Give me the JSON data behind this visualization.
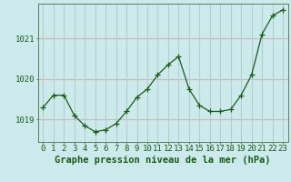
{
  "x": [
    0,
    1,
    2,
    3,
    4,
    5,
    6,
    7,
    8,
    9,
    10,
    11,
    12,
    13,
    14,
    15,
    16,
    17,
    18,
    19,
    20,
    21,
    22,
    23
  ],
  "y": [
    1019.3,
    1019.6,
    1019.6,
    1019.1,
    1018.85,
    1018.7,
    1018.75,
    1018.9,
    1019.2,
    1019.55,
    1019.75,
    1020.1,
    1020.35,
    1020.55,
    1019.75,
    1019.35,
    1019.2,
    1019.2,
    1019.25,
    1019.6,
    1020.1,
    1021.1,
    1021.55,
    1021.7
  ],
  "line_color": "#1a5c1a",
  "marker": "+",
  "marker_size": 4,
  "bg_color": "#cce9ec",
  "hgrid_color": "#c8b8b8",
  "vgrid_color": "#b8cece",
  "axis_color": "#5c7c5c",
  "tick_color": "#1a5c1a",
  "label_color": "#1a5c1a",
  "xlabel": "Graphe pression niveau de la mer (hPa)",
  "yticks": [
    1019,
    1020,
    1021
  ],
  "ylim": [
    1018.45,
    1021.85
  ],
  "xlim": [
    -0.5,
    23.5
  ],
  "label_fontsize": 7.5,
  "tick_fontsize": 6.5
}
